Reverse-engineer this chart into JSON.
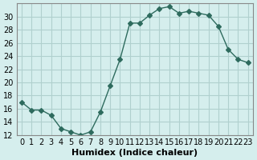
{
  "x": [
    0,
    1,
    2,
    3,
    4,
    5,
    6,
    7,
    8,
    9,
    10,
    11,
    12,
    13,
    14,
    15,
    16,
    17,
    18,
    19,
    20,
    21,
    22,
    23
  ],
  "y": [
    17.0,
    15.8,
    15.8,
    15.0,
    13.0,
    12.5,
    12.0,
    12.5,
    15.5,
    19.5,
    23.5,
    29.0,
    29.0,
    30.2,
    31.2,
    31.5,
    30.5,
    30.8,
    30.5,
    30.2,
    28.5,
    25.0,
    23.5,
    23.0
  ],
  "line_color": "#2e6b5e",
  "marker": "D",
  "marker_size": 3,
  "bg_color": "#d5eeed",
  "grid_color": "#b0d0ce",
  "xlabel": "Humidex (Indice chaleur)",
  "ylim": [
    12,
    32
  ],
  "xlim": [
    -0.5,
    23.5
  ],
  "yticks": [
    12,
    14,
    16,
    18,
    20,
    22,
    24,
    26,
    28,
    30
  ],
  "xticks": [
    0,
    1,
    2,
    3,
    4,
    5,
    6,
    7,
    8,
    9,
    10,
    11,
    12,
    13,
    14,
    15,
    16,
    17,
    18,
    19,
    20,
    21,
    22,
    23
  ],
  "tick_fontsize": 7,
  "label_fontsize": 8
}
